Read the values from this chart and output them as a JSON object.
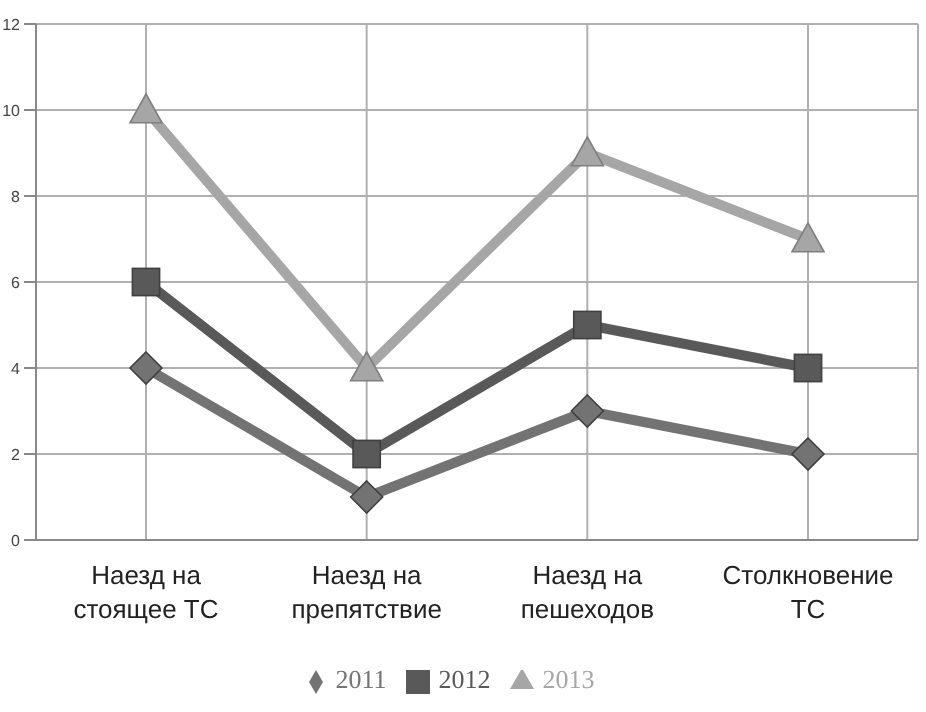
{
  "chart_data": {
    "type": "line",
    "categories": [
      "Наезд на стоящее ТС",
      "Наезд на препятствие",
      "Наезд на пешеходов",
      "Столкновение ТС"
    ],
    "series": [
      {
        "name": "2011",
        "color": "#737373",
        "values": [
          4,
          1,
          3,
          2
        ],
        "marker": "diamond"
      },
      {
        "name": "2012",
        "color": "#595959",
        "values": [
          6,
          2,
          5,
          4
        ],
        "marker": "square"
      },
      {
        "name": "2013",
        "color": "#a6a6a6",
        "values": [
          10,
          4,
          9,
          7
        ],
        "marker": "triangle"
      }
    ],
    "ylim": [
      0,
      12
    ],
    "yticks": [
      0,
      2,
      4,
      6,
      8,
      10,
      12
    ],
    "grid": true,
    "legend": "bottom",
    "line_style": "solid"
  }
}
